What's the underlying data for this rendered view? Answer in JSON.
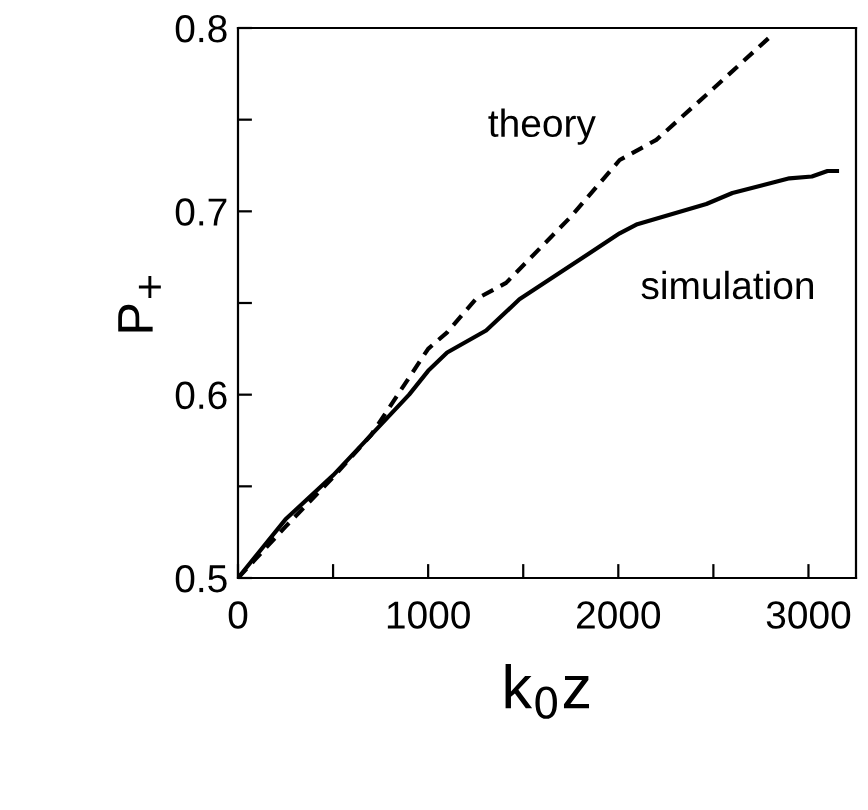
{
  "chart_data": {
    "type": "line",
    "xlabel": "k$_{0}$z",
    "ylabel": "P$_{+}$",
    "xlim": [
      0,
      3250
    ],
    "ylim": [
      0.5,
      0.8
    ],
    "xticks": [
      0,
      {
        "value": 500,
        "label": null
      },
      1000,
      {
        "value": 1500,
        "label": null
      },
      2000,
      {
        "value": 2500,
        "label": null
      },
      3000
    ],
    "yticks": [
      0.5,
      {
        "value": 0.55,
        "label": null
      },
      0.6,
      {
        "value": 0.65,
        "label": null
      },
      0.7,
      {
        "value": 0.75,
        "label": null
      },
      0.8
    ],
    "grid": false,
    "legend": false,
    "series": [
      {
        "name": "theory",
        "color": "#000000",
        "line_style": "dashed",
        "x": [
          0,
          250,
          500,
          700,
          1000,
          1100,
          1250,
          1410,
          1750,
          2007,
          2200,
          2500,
          2796
        ],
        "values": [
          0.5,
          0.528,
          0.555,
          0.578,
          0.625,
          0.634,
          0.652,
          0.661,
          0.697,
          0.728,
          0.739,
          0.767,
          0.795
        ]
      },
      {
        "name": "simulation",
        "color": "#000000",
        "line_style": "solid",
        "x": [
          0,
          250,
          500,
          900,
          1000,
          1100,
          1305,
          1480,
          1700,
          2007,
          2100,
          2463,
          2600,
          2900,
          3018,
          3100,
          3150
        ],
        "values": [
          0.5,
          0.532,
          0.556,
          0.6,
          0.613,
          0.623,
          0.635,
          0.652,
          0.667,
          0.688,
          0.693,
          0.704,
          0.71,
          0.718,
          0.719,
          0.722,
          0.722
        ]
      }
    ]
  }
}
